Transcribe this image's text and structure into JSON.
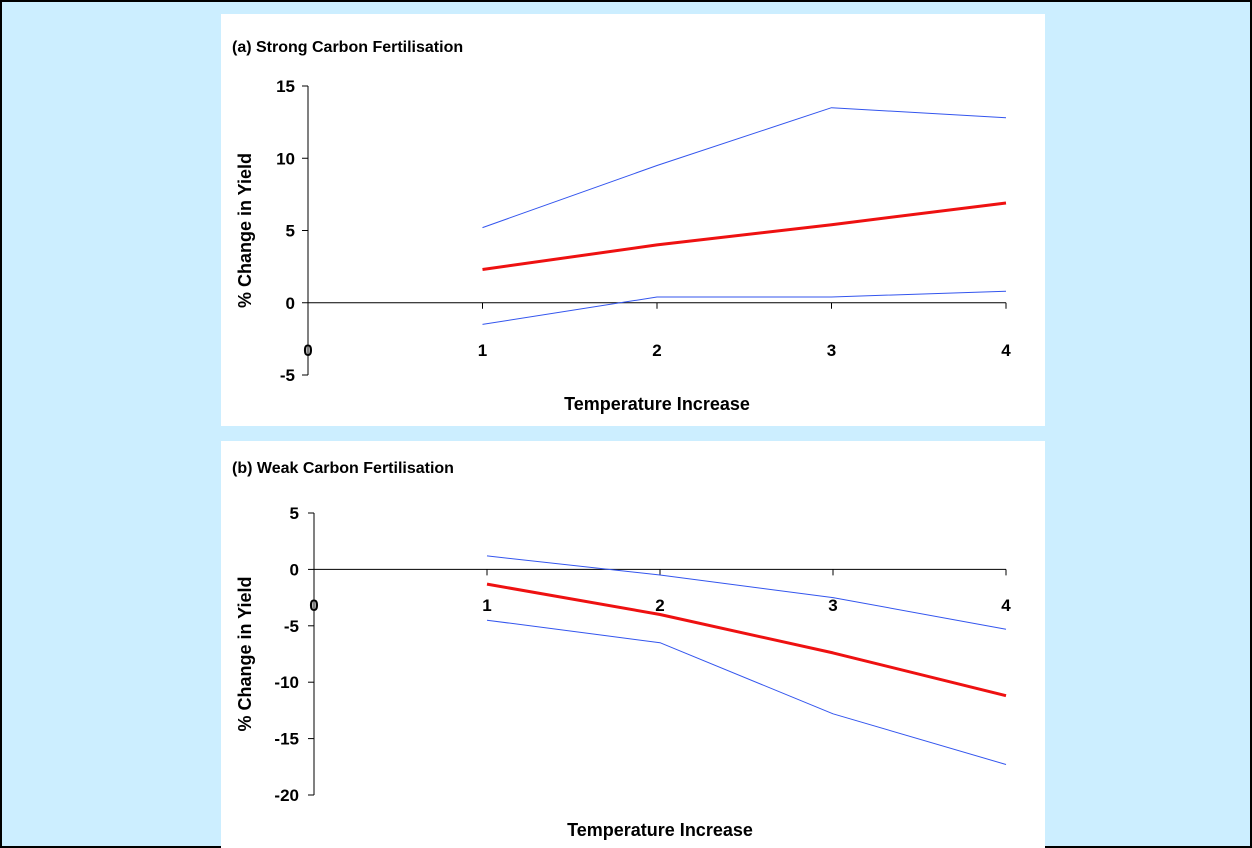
{
  "chart_data": [
    {
      "type": "line",
      "title": "(a) Strong Carbon Fertilisation",
      "xlabel": "Temperature Increase",
      "ylabel": "% Change in Yield",
      "xlim": [
        0,
        4
      ],
      "ylim": [
        -5,
        15
      ],
      "x_ticks": [
        0,
        1,
        2,
        3,
        4
      ],
      "y_ticks": [
        15,
        10,
        5,
        0,
        -5
      ],
      "grid": false,
      "legend": "none",
      "series": [
        {
          "x": [
            1,
            2,
            3,
            4
          ],
          "values": [
            5.2,
            9.5,
            13.5,
            12.8
          ],
          "color": "#3355ee",
          "width": 1
        },
        {
          "x": [
            1,
            2,
            3,
            4
          ],
          "values": [
            2.3,
            4.0,
            5.4,
            6.9
          ],
          "color": "#ee1111",
          "width": 3
        },
        {
          "x": [
            1,
            2,
            3,
            4
          ],
          "values": [
            -1.5,
            0.4,
            0.4,
            0.8
          ],
          "color": "#3355ee",
          "width": 1
        }
      ]
    },
    {
      "type": "line",
      "title": "(b) Weak Carbon Fertilisation",
      "xlabel": "Temperature Increase",
      "ylabel": "% Change in Yield",
      "xlim": [
        0,
        4
      ],
      "ylim": [
        -20,
        5
      ],
      "x_ticks": [
        0,
        1,
        2,
        3,
        4
      ],
      "y_ticks": [
        5,
        0,
        -5,
        -10,
        -15,
        -20
      ],
      "grid": false,
      "legend": "none",
      "series": [
        {
          "x": [
            1,
            2,
            3,
            4
          ],
          "values": [
            1.2,
            -0.5,
            -2.5,
            -5.3
          ],
          "color": "#3355ee",
          "width": 1
        },
        {
          "x": [
            1,
            2,
            3,
            4
          ],
          "values": [
            -1.3,
            -4.0,
            -7.4,
            -11.2
          ],
          "color": "#ee1111",
          "width": 3
        },
        {
          "x": [
            1,
            2,
            3,
            4
          ],
          "values": [
            -4.5,
            -6.5,
            -12.8,
            -17.3
          ],
          "color": "#3355ee",
          "width": 1
        }
      ]
    }
  ]
}
